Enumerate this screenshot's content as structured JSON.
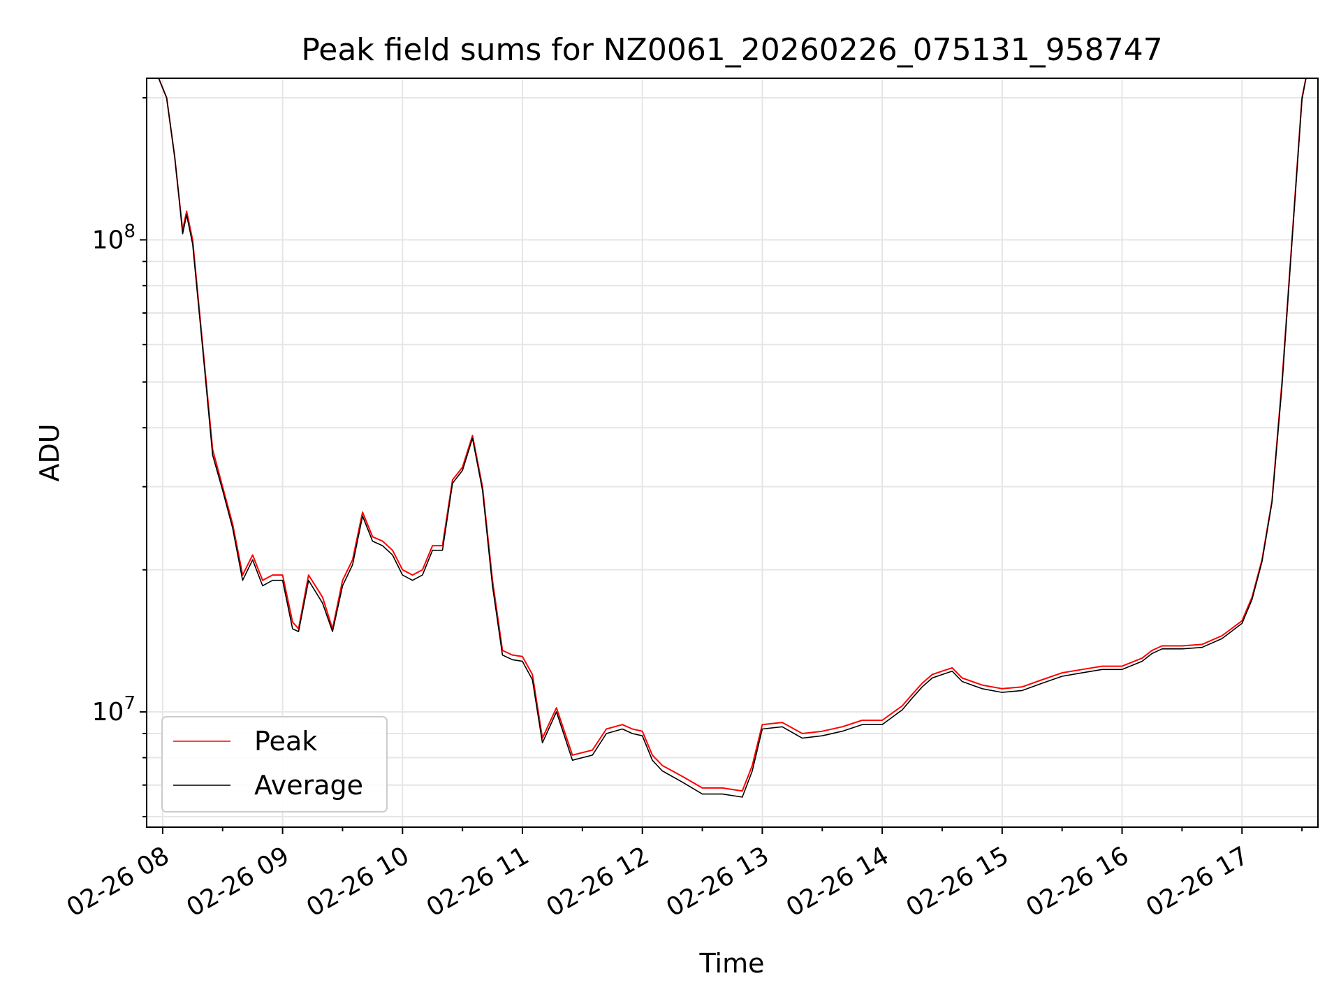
{
  "chart_data": {
    "type": "line",
    "title": "Peak field sums for NZ0061_20260226_075131_958747",
    "xlabel": "Time",
    "ylabel": "ADU",
    "y_scale": "log",
    "ylim": [
      5700000,
      220000000
    ],
    "xlim": [
      "02-26 07:52",
      "02-26 17:38"
    ],
    "x_tick_labels": [
      "02-26 08",
      "02-26 09",
      "02-26 10",
      "02-26 11",
      "02-26 12",
      "02-26 13",
      "02-26 14",
      "02-26 15",
      "02-26 16",
      "02-26 17"
    ],
    "y_tick_labels": [
      {
        "value": 100000000,
        "base": "10",
        "exp": "8"
      },
      {
        "value": 10000000,
        "base": "10",
        "exp": "7"
      }
    ],
    "grid": true,
    "legend_position": "lower left",
    "x": [
      "02-26 07:58",
      "02-26 08:02",
      "02-26 08:06",
      "02-26 08:08",
      "02-26 08:10",
      "02-26 08:12",
      "02-26 08:15",
      "02-26 08:20",
      "02-26 08:25",
      "02-26 08:30",
      "02-26 08:35",
      "02-26 08:40",
      "02-26 08:45",
      "02-26 08:50",
      "02-26 08:55",
      "02-26 09:00",
      "02-26 09:05",
      "02-26 09:08",
      "02-26 09:13",
      "02-26 09:20",
      "02-26 09:25",
      "02-26 09:30",
      "02-26 09:35",
      "02-26 09:40",
      "02-26 09:45",
      "02-26 09:50",
      "02-26 09:55",
      "02-26 10:00",
      "02-26 10:05",
      "02-26 10:10",
      "02-26 10:15",
      "02-26 10:20",
      "02-26 10:25",
      "02-26 10:30",
      "02-26 10:35",
      "02-26 10:40",
      "02-26 10:45",
      "02-26 10:50",
      "02-26 10:55",
      "02-26 11:00",
      "02-26 11:05",
      "02-26 11:10",
      "02-26 11:17",
      "02-26 11:25",
      "02-26 11:35",
      "02-26 11:42",
      "02-26 11:50",
      "02-26 11:55",
      "02-26 12:00",
      "02-26 12:05",
      "02-26 12:10",
      "02-26 12:20",
      "02-26 12:30",
      "02-26 12:40",
      "02-26 12:50",
      "02-26 12:55",
      "02-26 13:00",
      "02-26 13:10",
      "02-26 13:20",
      "02-26 13:30",
      "02-26 13:40",
      "02-26 13:50",
      "02-26 14:00",
      "02-26 14:10",
      "02-26 14:15",
      "02-26 14:20",
      "02-26 14:25",
      "02-26 14:30",
      "02-26 14:35",
      "02-26 14:40",
      "02-26 14:50",
      "02-26 15:00",
      "02-26 15:10",
      "02-26 15:20",
      "02-26 15:30",
      "02-26 15:40",
      "02-26 15:50",
      "02-26 16:00",
      "02-26 16:10",
      "02-26 16:15",
      "02-26 16:20",
      "02-26 16:30",
      "02-26 16:40",
      "02-26 16:50",
      "02-26 17:00",
      "02-26 17:05",
      "02-26 17:10",
      "02-26 17:15",
      "02-26 17:20",
      "02-26 17:25",
      "02-26 17:30",
      "02-26 17:32"
    ],
    "series": [
      {
        "name": "Peak",
        "color": "#ff0000",
        "values": [
          220000000,
          200000000,
          150000000,
          125000000,
          105000000,
          115000000,
          100000000,
          60000000,
          36000000,
          30000000,
          25000000,
          19500000,
          21500000,
          19000000,
          19500000,
          19500000,
          15500000,
          15000000,
          19500000,
          17500000,
          15000000,
          19000000,
          21000000,
          26500000,
          23500000,
          23000000,
          22000000,
          20000000,
          19500000,
          20000000,
          22500000,
          22500000,
          31000000,
          33000000,
          38500000,
          30000000,
          19000000,
          13500000,
          13200000,
          13100000,
          12000000,
          8800000,
          10200000,
          8100000,
          8300000,
          9200000,
          9400000,
          9200000,
          9100000,
          8100000,
          7700000,
          7300000,
          6900000,
          6900000,
          6800000,
          7700000,
          9400000,
          9500000,
          9000000,
          9100000,
          9300000,
          9600000,
          9600000,
          10300000,
          10900000,
          11500000,
          12000000,
          12200000,
          12400000,
          11800000,
          11400000,
          11200000,
          11300000,
          11700000,
          12100000,
          12300000,
          12500000,
          12500000,
          13000000,
          13500000,
          13800000,
          13800000,
          13900000,
          14500000,
          15600000,
          17500000,
          21000000,
          28000000,
          50000000,
          100000000,
          200000000,
          220000000
        ]
      },
      {
        "name": "Average",
        "color": "#000000",
        "values": [
          220000000,
          200000000,
          150000000,
          125000000,
          103000000,
          113000000,
          98000000,
          59000000,
          35000000,
          29500000,
          24500000,
          19000000,
          21000000,
          18500000,
          19000000,
          19000000,
          15000000,
          14800000,
          19000000,
          17000000,
          14800000,
          18500000,
          20500000,
          26000000,
          23000000,
          22500000,
          21500000,
          19500000,
          19000000,
          19500000,
          22000000,
          22000000,
          30500000,
          32500000,
          38000000,
          29500000,
          18500000,
          13200000,
          12900000,
          12800000,
          11700000,
          8600000,
          10000000,
          7900000,
          8100000,
          9000000,
          9200000,
          9000000,
          8900000,
          7900000,
          7500000,
          7100000,
          6700000,
          6700000,
          6600000,
          7500000,
          9200000,
          9300000,
          8800000,
          8900000,
          9100000,
          9400000,
          9400000,
          10100000,
          10700000,
          11300000,
          11800000,
          12000000,
          12200000,
          11600000,
          11200000,
          11000000,
          11100000,
          11500000,
          11900000,
          12100000,
          12300000,
          12300000,
          12800000,
          13300000,
          13600000,
          13600000,
          13700000,
          14300000,
          15400000,
          17300000,
          20800000,
          27800000,
          49000000,
          99000000,
          198000000,
          220000000
        ]
      }
    ]
  }
}
